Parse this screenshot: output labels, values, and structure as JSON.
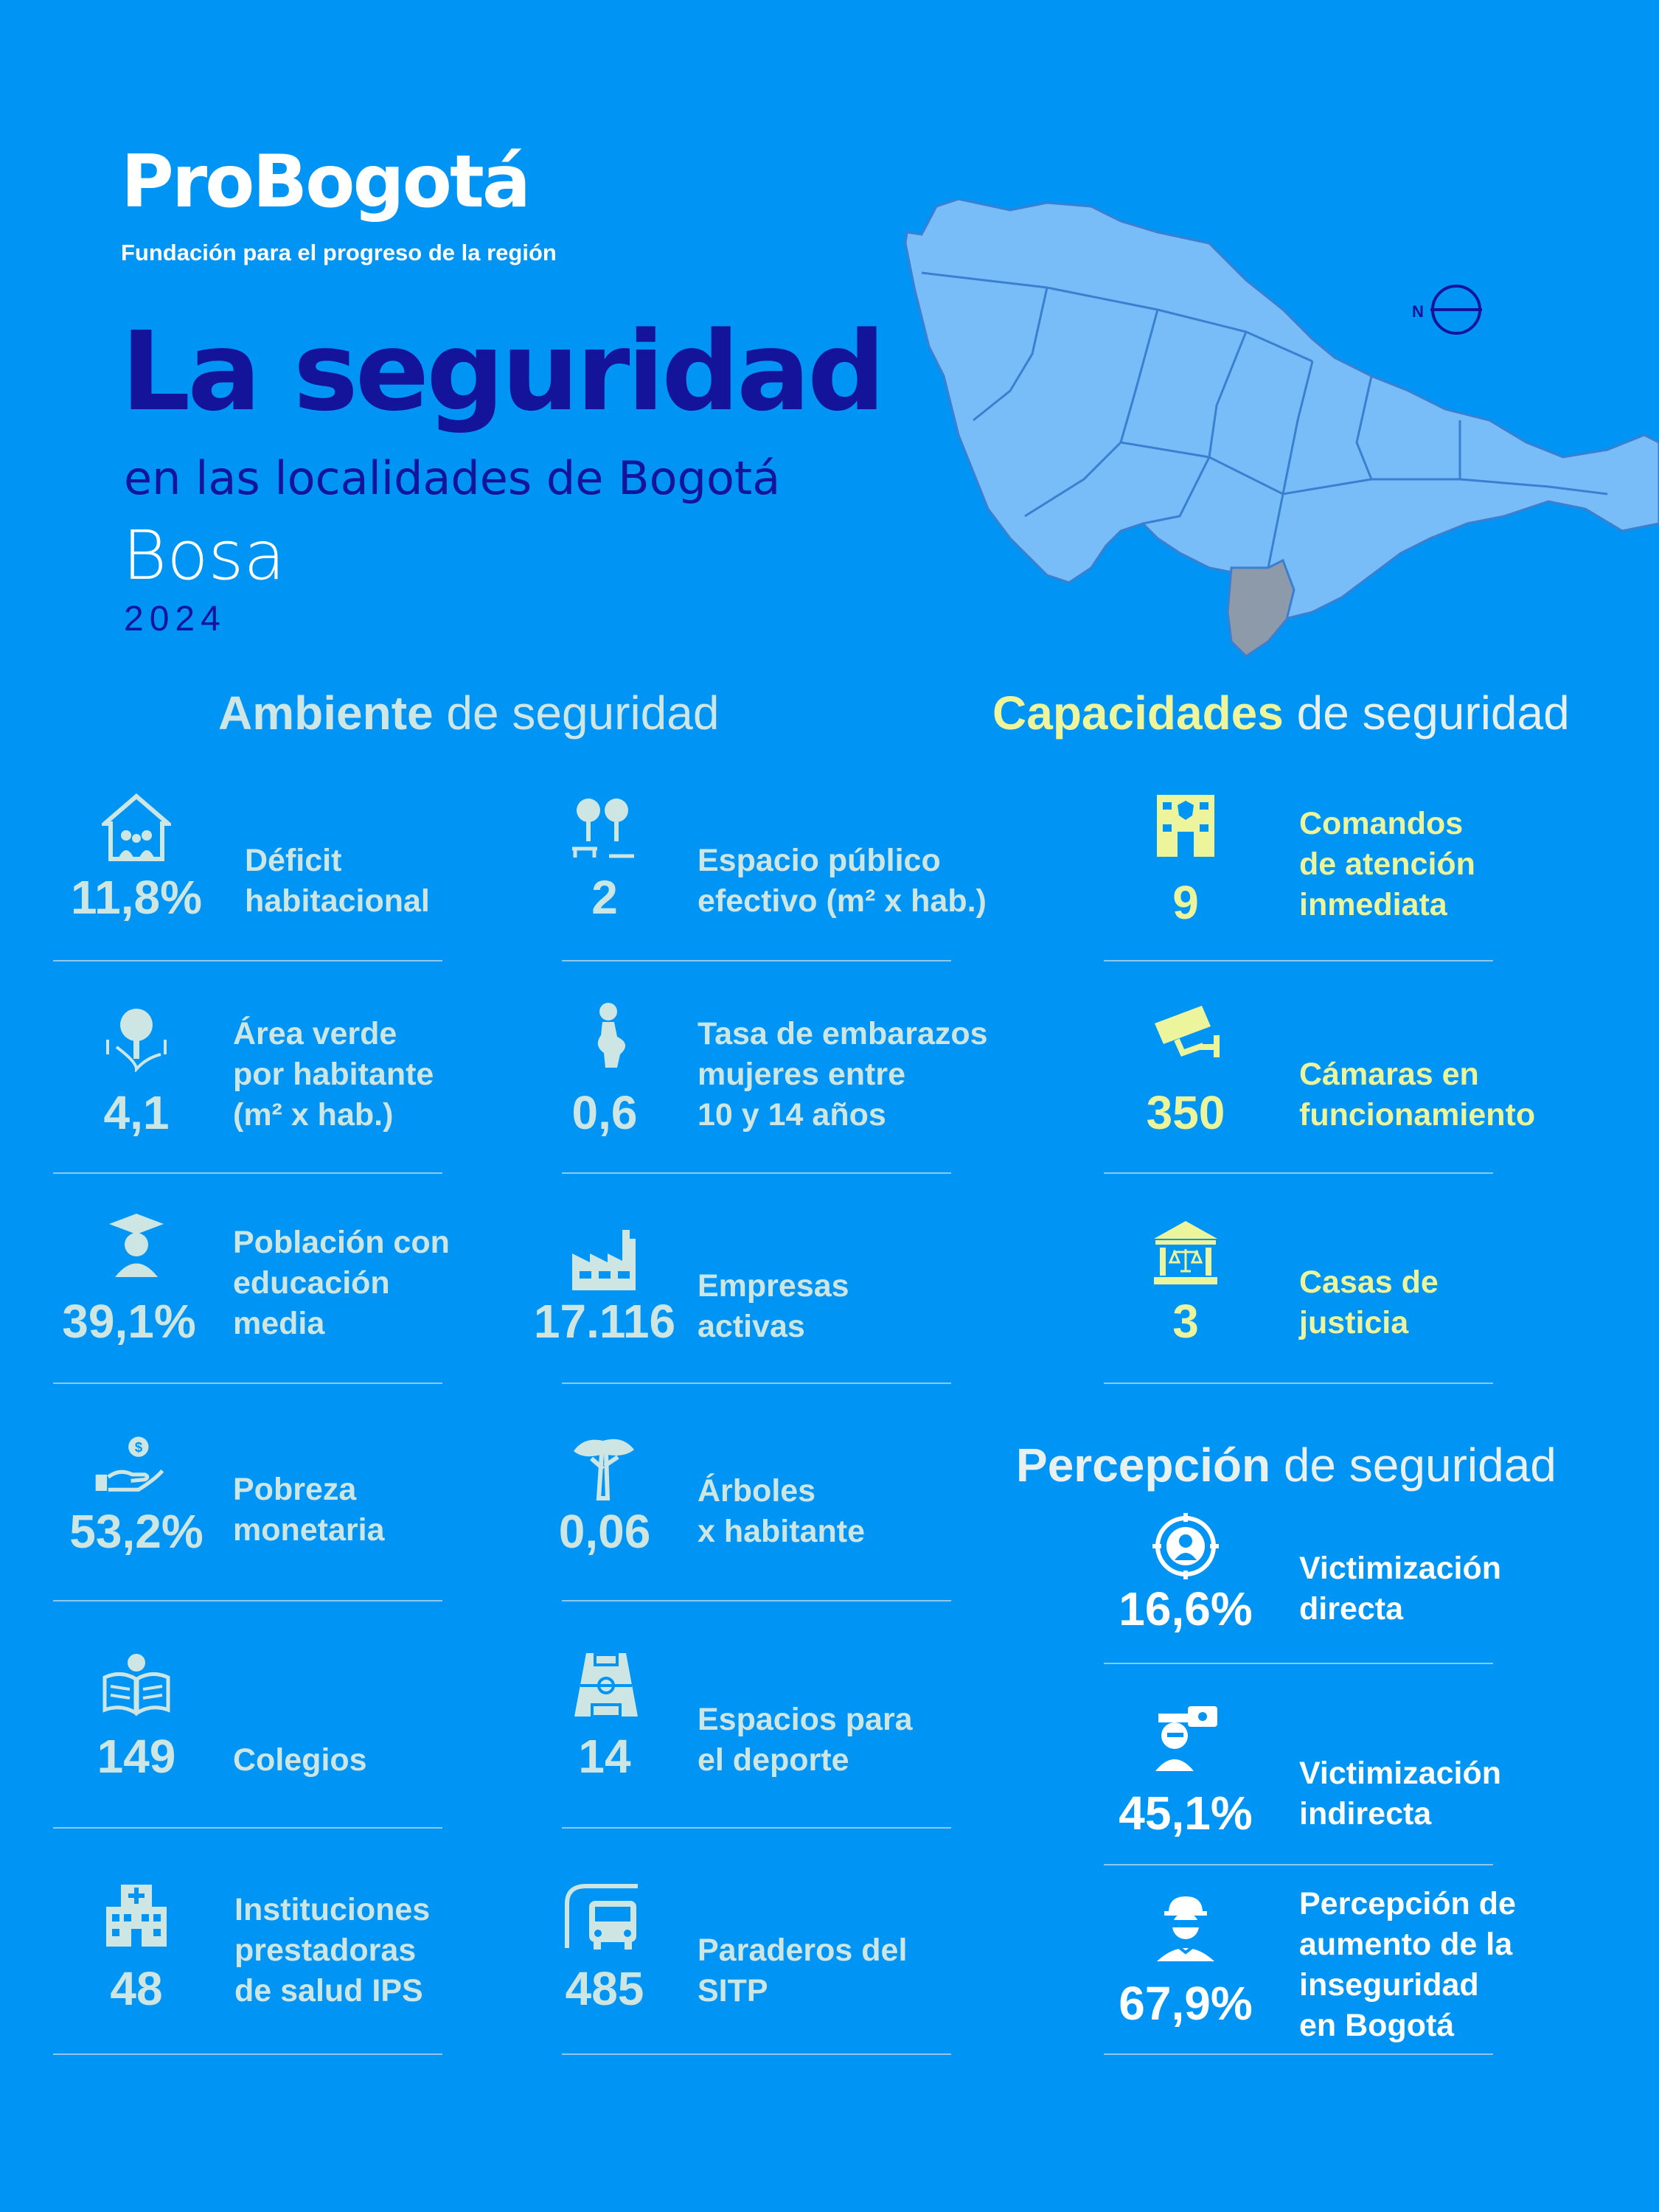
{
  "header": {
    "brand": "ProBogotá",
    "brand_sub": "Fundación para el progreso de la región",
    "title": "La seguridad",
    "subtitle": "en las localidades de Bogotá",
    "locality": "Bosa",
    "year": "2024"
  },
  "map": {
    "compass_label": "N",
    "highlight_color": "#8c9aaa",
    "base_color": "#78bdf7"
  },
  "sections": {
    "ambiente": {
      "bold": "Ambiente",
      "rest": " de seguridad"
    },
    "capacidades": {
      "bold": "Capacidades",
      "rest": " de seguridad"
    },
    "percepcion": {
      "bold": "Percepción",
      "rest": " de seguridad"
    }
  },
  "ambiente_col1": [
    {
      "value": "11,8%",
      "label": "Déficit\nhabitacional",
      "icon": "house-family-icon"
    },
    {
      "value": "4,1",
      "label": "Área verde\npor habitante\n(m² x hab.)",
      "icon": "tree-icon"
    },
    {
      "value": "39,1%",
      "label": "Población con\neducación\nmedia",
      "icon": "graduate-icon"
    },
    {
      "value": "53,2%",
      "label": "Pobreza\nmonetaria",
      "icon": "hand-coin-icon"
    },
    {
      "value": "149",
      "label": "Colegios",
      "icon": "book-bulb-icon"
    },
    {
      "value": "48",
      "label": "Instituciones\nprestadoras\nde salud IPS",
      "icon": "hospital-icon"
    }
  ],
  "ambiente_col2": [
    {
      "value": "2",
      "label": "Espacio público\nefectivo (m² x hab.)",
      "icon": "park-icon"
    },
    {
      "value": "0,6",
      "label": "Tasa de embarazos\nmujeres entre\n10 y 14 años",
      "icon": "pregnant-icon"
    },
    {
      "value": "17.116",
      "label": "Empresas\nactivas",
      "icon": "factory-icon"
    },
    {
      "value": "0,06",
      "label": "Árboles\nx habitante",
      "icon": "acacia-tree-icon"
    },
    {
      "value": "14",
      "label": "Espacios para\nel deporte",
      "icon": "sports-court-icon"
    },
    {
      "value": "485",
      "label": "Paraderos del\nSITP",
      "icon": "bus-stop-icon"
    }
  ],
  "capacidades": [
    {
      "value": "9",
      "label": "Comandos\nde atención\ninmediata",
      "icon": "police-station-icon"
    },
    {
      "value": "350",
      "label": "Cámaras en\nfuncionamiento",
      "icon": "security-camera-icon"
    },
    {
      "value": "3",
      "label": "Casas de\njusticia",
      "icon": "courthouse-icon"
    }
  ],
  "percepcion": [
    {
      "value": "16,6%",
      "label": "Victimización\ndirecta",
      "icon": "target-person-icon"
    },
    {
      "value": "45,1%",
      "label": "Victimización\nindirecta",
      "icon": "witness-icon"
    },
    {
      "value": "67,9%",
      "label": "Percepción de\naumento de la\ninseguridad\nen Bogotá",
      "icon": "thief-icon"
    }
  ],
  "colors": {
    "background": "#0094f5",
    "title": "#14149a",
    "teal_text": "#cde6e3",
    "yellow_text": "#ecf59c"
  }
}
